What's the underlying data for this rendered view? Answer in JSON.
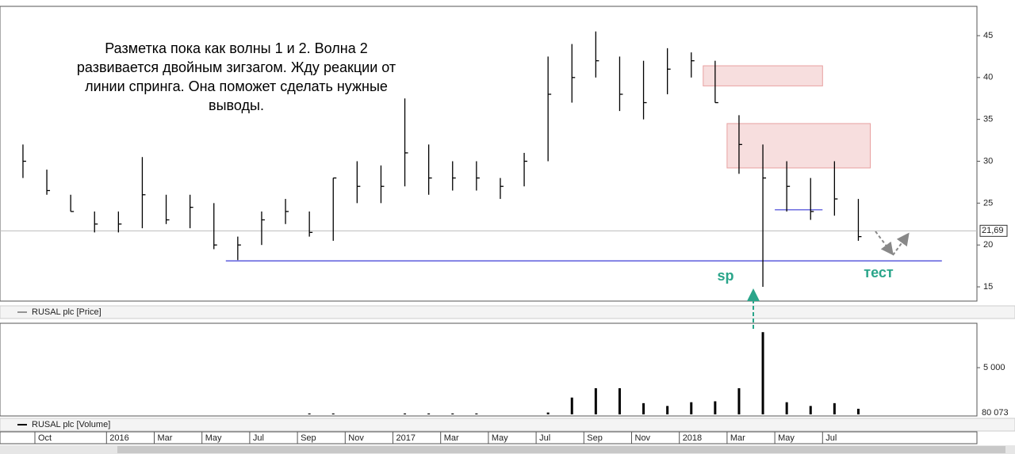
{
  "chart_data": [
    {
      "type": "ohlc",
      "legend": "RUSAL plc [Price]",
      "color": "#000000",
      "x": [
        "2015-09",
        "2015-10",
        "2015-11",
        "2015-12",
        "2016-01",
        "2016-02",
        "2016-03",
        "2016-04",
        "2016-05",
        "2016-06",
        "2016-07",
        "2016-08",
        "2016-09",
        "2016-10",
        "2016-11",
        "2016-12",
        "2017-01",
        "2017-02",
        "2017-03",
        "2017-04",
        "2017-05",
        "2017-06",
        "2017-07",
        "2017-08",
        "2017-09",
        "2017-10",
        "2017-11",
        "2017-12",
        "2018-01",
        "2018-02",
        "2018-03",
        "2018-04",
        "2018-05",
        "2018-06",
        "2018-07",
        "2018-08"
      ],
      "high": [
        32,
        29,
        26,
        24,
        24,
        30.5,
        26,
        26,
        25,
        21,
        24,
        25.5,
        24,
        28,
        30,
        29.5,
        37.5,
        32,
        30,
        30,
        28,
        31,
        42.5,
        44,
        45.5,
        42.5,
        42,
        43.5,
        43,
        42,
        35.5,
        32,
        30,
        28,
        30,
        25.5
      ],
      "low": [
        28,
        26,
        24,
        21.5,
        21.5,
        22,
        22.5,
        22,
        19.5,
        18.2,
        20,
        22.5,
        21,
        20.5,
        25,
        25,
        27,
        26,
        26.5,
        26.5,
        25.5,
        27,
        30,
        37,
        40,
        36,
        35,
        38,
        40,
        37,
        28.5,
        15,
        24,
        23,
        23.5,
        20.5
      ],
      "close": [
        30,
        26.5,
        24,
        22.5,
        22.5,
        26,
        23,
        24.5,
        20,
        20,
        23,
        24,
        21.5,
        28,
        27,
        27,
        31,
        28,
        28,
        28,
        27,
        30,
        38,
        40,
        42,
        38,
        37,
        41,
        42,
        37,
        32,
        28,
        27,
        24,
        25.5,
        21
      ],
      "ylim": [
        13.3,
        48.5
      ],
      "yticks": [
        15,
        20,
        25,
        30,
        35,
        40,
        45
      ],
      "last_price": {
        "value": 21.69,
        "label": "21,69"
      },
      "lines": [
        {
          "value": 18.1,
          "from": "2016-06",
          "to": "2018-12",
          "color": "#3b3bd6"
        },
        {
          "value": 24.2,
          "from": "2018-05",
          "to": "2018-07",
          "color": "#3b3bd6"
        }
      ],
      "zones": [
        {
          "low": 39,
          "high": 41.4,
          "from": "2018-02",
          "to": "2018-07",
          "color": "#e8a0a0"
        },
        {
          "low": 29.2,
          "high": 34.5,
          "from": "2018-03",
          "to": "2018-09",
          "color": "#e8a0a0"
        }
      ],
      "note": [
        "Разметка пока как волны 1 и 2. Волна 2",
        "развивается двойным зигзагом. Жду реакции от",
        "линии спринга. Она поможет сделать нужные",
        "выводы."
      ],
      "labels": [
        "sp",
        "тест"
      ]
    },
    {
      "type": "bar",
      "legend": "RUSAL plc [Volume]",
      "color": "#000000",
      "x": [
        "2015-09",
        "2015-10",
        "2015-11",
        "2015-12",
        "2016-01",
        "2016-02",
        "2016-03",
        "2016-04",
        "2016-05",
        "2016-06",
        "2016-07",
        "2016-08",
        "2016-09",
        "2016-10",
        "2016-11",
        "2016-12",
        "2017-01",
        "2017-02",
        "2017-03",
        "2017-04",
        "2017-05",
        "2017-06",
        "2017-07",
        "2017-08",
        "2017-09",
        "2017-10",
        "2017-11",
        "2017-12",
        "2018-01",
        "2018-02",
        "2018-03",
        "2018-04",
        "2018-05",
        "2018-06",
        "2018-07",
        "2018-08"
      ],
      "values": [
        0,
        0,
        0,
        0,
        0,
        0,
        0,
        0,
        0,
        0,
        0,
        0,
        100,
        100,
        0,
        0,
        100,
        100,
        100,
        100,
        0,
        0,
        200,
        1800,
        2800,
        2800,
        1200,
        900,
        1300,
        1400,
        2800,
        8800,
        1300,
        900,
        1200,
        600
      ],
      "ylim": [
        0,
        9750
      ],
      "yticks": [
        {
          "value": 5000,
          "label": "5 000"
        }
      ],
      "last_label": "80 073"
    }
  ],
  "xticks": [
    {
      "value": "2015-10",
      "label": "Oct"
    },
    {
      "value": "2016-01",
      "label": "2016"
    },
    {
      "value": "2016-03",
      "label": "Mar"
    },
    {
      "value": "2016-05",
      "label": "May"
    },
    {
      "value": "2016-07",
      "label": "Jul"
    },
    {
      "value": "2016-09",
      "label": "Sep"
    },
    {
      "value": "2016-11",
      "label": "Nov"
    },
    {
      "value": "2017-01",
      "label": "2017"
    },
    {
      "value": "2017-03",
      "label": "Mar"
    },
    {
      "value": "2017-05",
      "label": "May"
    },
    {
      "value": "2017-07",
      "label": "Jul"
    },
    {
      "value": "2017-09",
      "label": "Sep"
    },
    {
      "value": "2017-11",
      "label": "Nov"
    },
    {
      "value": "2018-01",
      "label": "2018"
    },
    {
      "value": "2018-03",
      "label": "Mar"
    },
    {
      "value": "2018-05",
      "label": "May"
    },
    {
      "value": "2018-07",
      "label": "Jul"
    }
  ]
}
